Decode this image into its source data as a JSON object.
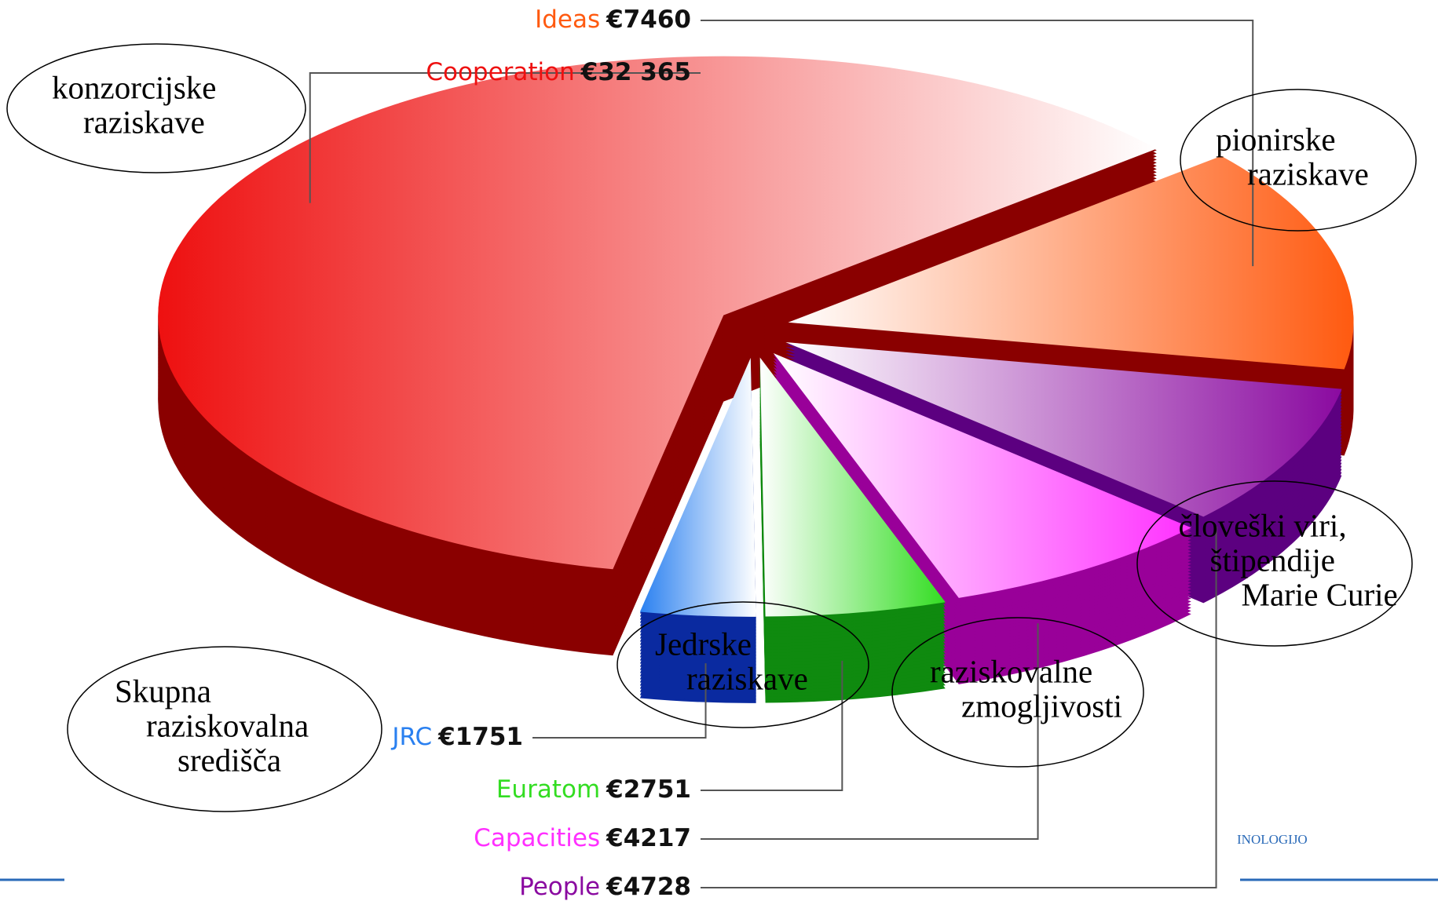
{
  "chart_data": {
    "type": "pie",
    "categories": [
      "Ideas",
      "People",
      "Capacities",
      "Euratom",
      "JRC",
      "Cooperation"
    ],
    "values": [
      7460,
      4728,
      4217,
      2751,
      1751,
      32365
    ],
    "value_labels": [
      "€7460",
      "€4728",
      "€4217",
      "€2751",
      "€1751",
      "€32 365"
    ],
    "colors": [
      "#ff5a10",
      "#8a0aa0",
      "#ff30ff",
      "#33dd22",
      "#2a80f0",
      "#ee1010"
    ],
    "side_colors": [
      "#8a0000",
      "#5c0080",
      "#990099",
      "#0f8a0f",
      "#0a2aa0",
      "#8a0000"
    ]
  },
  "annotations": [
    {
      "lines": [
        "konzorcijske",
        "raziskave"
      ]
    },
    {
      "lines": [
        "pionirske",
        "raziskave"
      ]
    },
    {
      "lines": [
        "človeški viri,",
        "štipendije",
        "Marie Curie"
      ]
    },
    {
      "lines": [
        "raziskovalne",
        "zmogljivosti"
      ]
    },
    {
      "lines": [
        "Jedrske",
        "raziskave"
      ]
    },
    {
      "lines": [
        "Skupna",
        "raziskovalna",
        "središča"
      ]
    }
  ],
  "footer": "INOLOGIJO"
}
